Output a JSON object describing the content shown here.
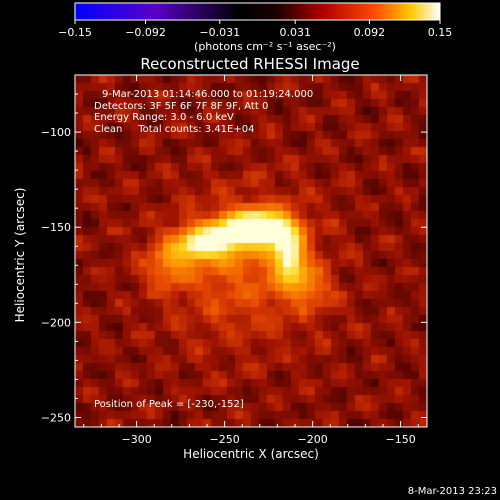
{
  "chart_data": {
    "type": "heatmap",
    "title": "Reconstructed RHESSI Image",
    "xlabel": "Heliocentric X (arcsec)",
    "ylabel": "Heliocentric Y (arcsec)",
    "xlim": [
      -335,
      -135
    ],
    "ylim": [
      -255,
      -70
    ],
    "xticks": [
      -300,
      -250,
      -200,
      -150
    ],
    "xtick_labels": [
      "−300",
      "−250",
      "−200",
      "−150"
    ],
    "yticks": [
      -100,
      -150,
      -200,
      -250
    ],
    "ytick_labels": [
      "−100",
      "−150",
      "−200",
      "−250"
    ],
    "peak": [
      -230,
      -152
    ],
    "colorbar": {
      "range": [
        -0.15,
        0.15
      ],
      "tick_values": [
        -0.15,
        -0.092,
        -0.031,
        0.031,
        0.092,
        0.15
      ],
      "tick_labels": [
        "−0.15",
        "−0.092",
        "−0.031",
        "0.031",
        "0.092",
        "0.15"
      ],
      "units_label": "(photons cm⁻² s⁻¹ asec⁻²)"
    },
    "sources": [
      {
        "x": -232,
        "y": -150,
        "amp": 1.0,
        "sx": 14,
        "sy": 7
      },
      {
        "x": -262,
        "y": -158,
        "amp": 0.75,
        "sx": 12,
        "sy": 7
      },
      {
        "x": -213,
        "y": -165,
        "amp": 0.7,
        "sx": 7,
        "sy": 12
      },
      {
        "x": -283,
        "y": -170,
        "amp": 0.45,
        "sx": 10,
        "sy": 9
      },
      {
        "x": -240,
        "y": -172,
        "amp": 0.45,
        "sx": 30,
        "sy": 28
      },
      {
        "x": -200,
        "y": -182,
        "amp": 0.4,
        "sx": 8,
        "sy": 8
      }
    ]
  },
  "annotations": {
    "time_range": "9-Mar-2013 01:14:46.000 to 01:19:24.000",
    "detectors": "Detectors: 3F 5F 6F 7F 8F 9F, Att 0",
    "energy": "Energy Range: 3.0 - 6.0 keV",
    "clean": "Clean     Total counts: 3.41E+04",
    "peak_text": "Position of Peak = [-230,-152]"
  },
  "footer_timestamp": "8-Mar-2013 23:23",
  "colors": {
    "background": "#000000",
    "colormap": [
      "#0000ff",
      "#5a00c8",
      "#000000",
      "#8c0000",
      "#ff3c00",
      "#ffc000",
      "#ffffff"
    ]
  }
}
